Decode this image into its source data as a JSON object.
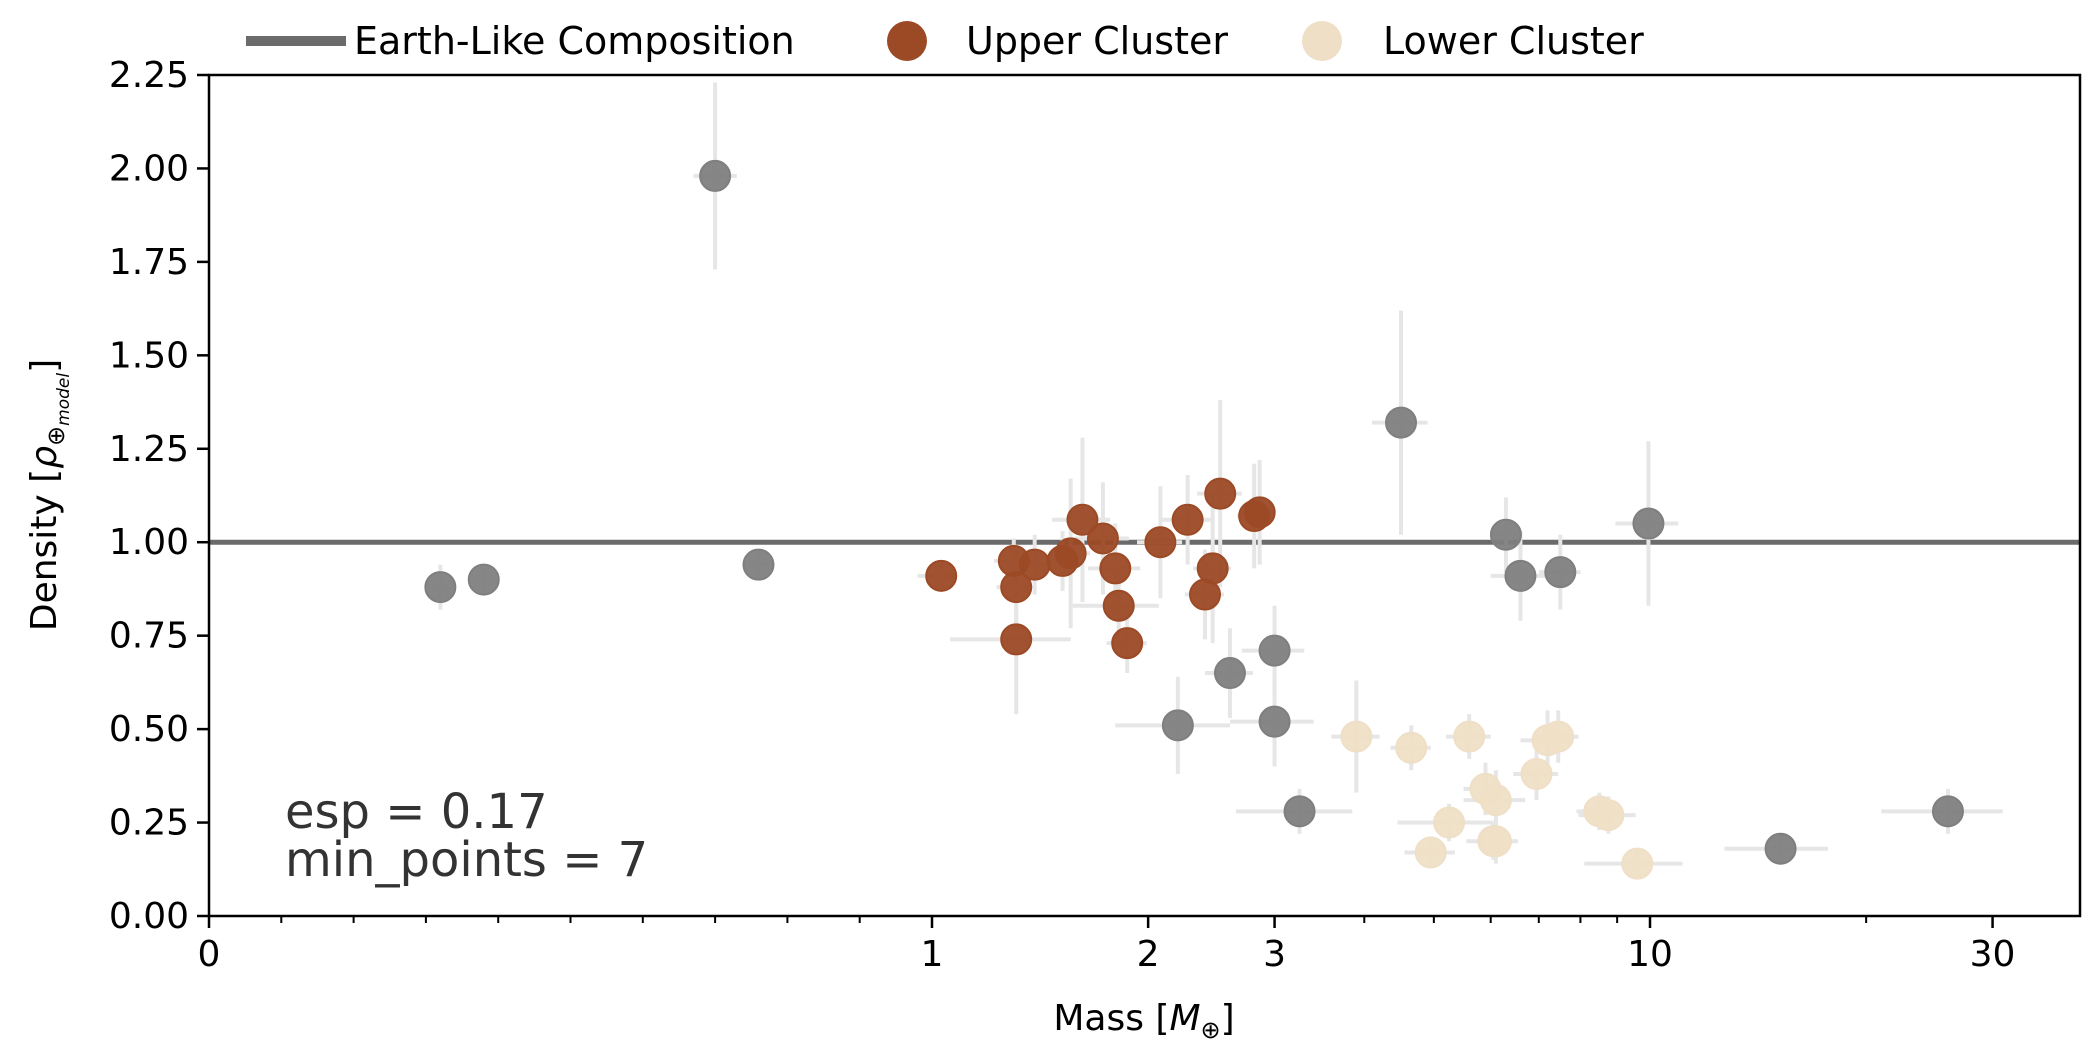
{
  "chart_data": {
    "type": "scatter",
    "xlabel_main": "Mass [",
    "xlabel_sym": "M",
    "xlabel_sub": "⊕",
    "xlabel_end": "]",
    "ylabel_main": "Density [",
    "ylabel_sym": "ρ",
    "ylabel_sub": "⊕",
    "ylabel_subsub": "model",
    "ylabel_end": "]",
    "xscale": "log",
    "xlim": [
      0,
      37
    ],
    "ylim": [
      0,
      2.25
    ],
    "xticks": [
      {
        "value": 0,
        "label": "0"
      },
      {
        "value": 1,
        "label": "1"
      },
      {
        "value": 2,
        "label": "2"
      },
      {
        "value": 3,
        "label": "3"
      },
      {
        "value": 10,
        "label": "10"
      },
      {
        "value": 30,
        "label": "30"
      }
    ],
    "yticks": [
      "0.00",
      "0.25",
      "0.50",
      "0.75",
      "1.00",
      "1.25",
      "1.50",
      "1.75",
      "2.00",
      "2.25"
    ],
    "legend_position": "top",
    "legend": [
      {
        "label": "Earth-Like Composition",
        "kind": "line",
        "color": "#6b6b6b"
      },
      {
        "label": "Upper Cluster",
        "kind": "marker",
        "color": "#9c4a26"
      },
      {
        "label": "Lower Cluster",
        "kind": "marker",
        "color": "#efdfc6"
      }
    ],
    "reference_line": {
      "name": "Earth-Like Composition",
      "y": 1.0,
      "color": "#6b6b6b"
    },
    "annotations": [
      "esp = 0.17",
      "min_points = 7"
    ],
    "colors": {
      "upper": "#9c4a26",
      "lower": "#efdfc6",
      "noise": "#7f7f7f",
      "errorbar": "#e6e6e6"
    },
    "series": [
      {
        "name": "Upper Cluster",
        "color": "#9c4a26",
        "points": [
          {
            "x": 1.03,
            "y": 0.91,
            "xerr": 0.05,
            "yerr": 0.03
          },
          {
            "x": 1.3,
            "y": 0.95,
            "xerr": 0.08,
            "yerr": 0.06
          },
          {
            "x": 1.31,
            "y": 0.88,
            "xerr": 0.08,
            "yerr": 0.1
          },
          {
            "x": 1.31,
            "y": 0.74,
            "xerr": 0.25,
            "yerr": 0.2
          },
          {
            "x": 1.39,
            "y": 0.94,
            "xerr": 0.1,
            "yerr": 0.08
          },
          {
            "x": 1.52,
            "y": 0.95,
            "xerr": 0.08,
            "yerr": 0.08
          },
          {
            "x": 1.56,
            "y": 0.97,
            "xerr": 0.1,
            "yerr": 0.2
          },
          {
            "x": 1.62,
            "y": 1.06,
            "xerr": 0.15,
            "yerr": 0.22
          },
          {
            "x": 1.73,
            "y": 1.01,
            "xerr": 0.15,
            "yerr": 0.15
          },
          {
            "x": 1.8,
            "y": 0.93,
            "xerr": 0.15,
            "yerr": 0.12
          },
          {
            "x": 1.82,
            "y": 0.83,
            "xerr": 0.25,
            "yerr": 0.08
          },
          {
            "x": 1.87,
            "y": 0.73,
            "xerr": 0.12,
            "yerr": 0.08
          },
          {
            "x": 2.08,
            "y": 1.0,
            "xerr": 0.15,
            "yerr": 0.15
          },
          {
            "x": 2.27,
            "y": 1.06,
            "xerr": 0.18,
            "yerr": 0.12
          },
          {
            "x": 2.4,
            "y": 0.86,
            "xerr": 0.15,
            "yerr": 0.12
          },
          {
            "x": 2.46,
            "y": 0.93,
            "xerr": 0.15,
            "yerr": 0.2
          },
          {
            "x": 2.52,
            "y": 1.13,
            "xerr": 0.18,
            "yerr": 0.25
          },
          {
            "x": 2.81,
            "y": 1.07,
            "xerr": 0.15,
            "yerr": 0.14
          },
          {
            "x": 2.86,
            "y": 1.08,
            "xerr": 0.15,
            "yerr": 0.14
          }
        ]
      },
      {
        "name": "Lower Cluster",
        "color": "#efdfc6",
        "points": [
          {
            "x": 3.9,
            "y": 0.48,
            "xerr": 0.3,
            "yerr": 0.15
          },
          {
            "x": 4.65,
            "y": 0.45,
            "xerr": 0.3,
            "yerr": 0.06
          },
          {
            "x": 4.95,
            "y": 0.17,
            "xerr": 0.4,
            "yerr": 0.04
          },
          {
            "x": 5.25,
            "y": 0.25,
            "xerr": 0.8,
            "yerr": 0.05
          },
          {
            "x": 5.6,
            "y": 0.48,
            "xerr": 0.4,
            "yerr": 0.06
          },
          {
            "x": 5.9,
            "y": 0.34,
            "xerr": 0.4,
            "yerr": 0.07
          },
          {
            "x": 6.05,
            "y": 0.2,
            "xerr": 0.5,
            "yerr": 0.05
          },
          {
            "x": 6.1,
            "y": 0.31,
            "xerr": 0.6,
            "yerr": 0.08
          },
          {
            "x": 6.1,
            "y": 0.2,
            "xerr": 0.4,
            "yerr": 0.06
          },
          {
            "x": 6.95,
            "y": 0.38,
            "xerr": 0.5,
            "yerr": 0.07
          },
          {
            "x": 7.2,
            "y": 0.47,
            "xerr": 0.6,
            "yerr": 0.08
          },
          {
            "x": 7.45,
            "y": 0.48,
            "xerr": 0.5,
            "yerr": 0.07
          },
          {
            "x": 8.5,
            "y": 0.28,
            "xerr": 0.6,
            "yerr": 0.05
          },
          {
            "x": 8.75,
            "y": 0.27,
            "xerr": 0.8,
            "yerr": 0.05
          },
          {
            "x": 9.6,
            "y": 0.14,
            "xerr": 1.5,
            "yerr": 0.04
          }
        ]
      },
      {
        "name": "",
        "color": "#7f7f7f",
        "points": [
          {
            "x": 0.32,
            "y": 0.88,
            "xerr": 0.01,
            "yerr": 0.06
          },
          {
            "x": 0.38,
            "y": 0.9,
            "xerr": 0.01,
            "yerr": 0.03
          },
          {
            "x": 0.7,
            "y": 1.98,
            "xerr": 0.03,
            "yerr": 0.25
          },
          {
            "x": 0.76,
            "y": 0.94,
            "xerr": 0.02,
            "yerr": 0.03
          },
          {
            "x": 2.2,
            "y": 0.51,
            "xerr": 0.4,
            "yerr": 0.13
          },
          {
            "x": 2.6,
            "y": 0.65,
            "xerr": 0.2,
            "yerr": 0.12
          },
          {
            "x": 3.0,
            "y": 0.71,
            "xerr": 0.3,
            "yerr": 0.12
          },
          {
            "x": 3.0,
            "y": 0.52,
            "xerr": 0.4,
            "yerr": 0.12
          },
          {
            "x": 3.25,
            "y": 0.28,
            "xerr": 0.6,
            "yerr": 0.06
          },
          {
            "x": 4.5,
            "y": 1.32,
            "xerr": 0.4,
            "yerr": 0.3
          },
          {
            "x": 6.3,
            "y": 1.02,
            "xerr": 0.3,
            "yerr": 0.1
          },
          {
            "x": 6.6,
            "y": 0.91,
            "xerr": 0.6,
            "yerr": 0.12
          },
          {
            "x": 7.5,
            "y": 0.92,
            "xerr": 0.5,
            "yerr": 0.1
          },
          {
            "x": 9.95,
            "y": 1.05,
            "xerr": 1.0,
            "yerr": 0.22
          },
          {
            "x": 15.2,
            "y": 0.18,
            "xerr": 2.5,
            "yerr": 0.04
          },
          {
            "x": 26.0,
            "y": 0.28,
            "xerr": 5.0,
            "yerr": 0.06
          }
        ]
      }
    ]
  }
}
